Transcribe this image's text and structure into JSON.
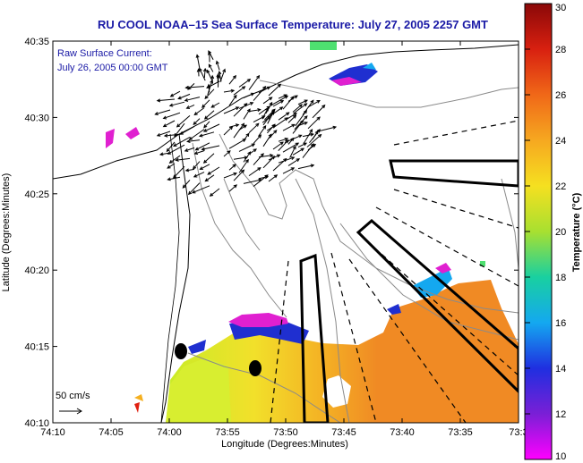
{
  "title": "RU COOL  NOAA–15  Sea Surface Temperature:  July 27, 2005 2257 GMT",
  "annotation": {
    "line1": "Raw Surface Current:",
    "line2": "July 26, 2005 00:00 GMT"
  },
  "scale": {
    "label": "50 cm/s"
  },
  "x_axis": {
    "label": "Longitude (Degrees:Minutes)",
    "ticks": [
      "74:10",
      "74:05",
      "74:00",
      "73:55",
      "73:50",
      "73:45",
      "73:40",
      "73:35",
      "73:3"
    ]
  },
  "y_axis": {
    "label": "Latitude (Degrees:Minutes)",
    "ticks": [
      "40:35",
      "40:30",
      "40:25",
      "40:20",
      "40:15",
      "40:10"
    ]
  },
  "colorbar": {
    "label": "Temperature (°C)",
    "ticks": [
      "30",
      "28",
      "26",
      "24",
      "22",
      "20",
      "18",
      "16",
      "14",
      "12",
      "10"
    ],
    "min": 10,
    "max": 30
  },
  "colors": {
    "title": "#1a1aa6",
    "land": "#ffffff",
    "sst_warm": "#f08a24",
    "sst_mid": "#f5d63a",
    "sst_cool": "#1f2fd0",
    "sst_cold": "#e020d0"
  }
}
